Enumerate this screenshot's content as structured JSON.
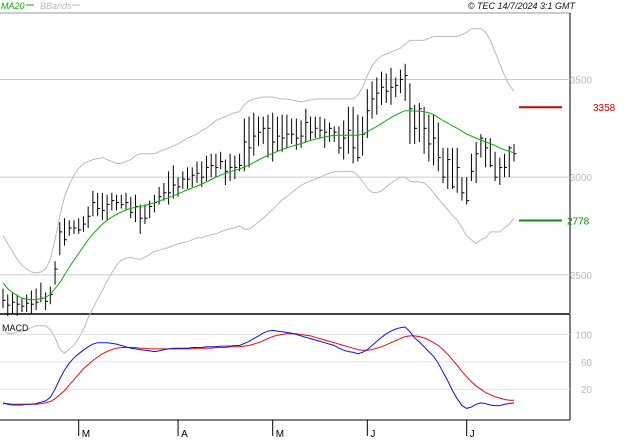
{
  "header": {
    "ma_label": "MA20",
    "bb_label": "BBands",
    "copyright": "© TEC 14/7/2024 3:1 GMT"
  },
  "colors": {
    "price": "#000000",
    "ma20": "#11aa11",
    "bbands": "#bbbbbb",
    "macd": "#1111dd",
    "signal": "#dd1111",
    "resistance": "#cc0000",
    "support": "#118811",
    "grid": "#cccccc"
  },
  "chart_data": [
    {
      "type": "ohlc",
      "title": "",
      "y_ticks": [
        "2500",
        "3000",
        "3500"
      ],
      "y_tick_values": [
        2500,
        3000,
        3500
      ],
      "ylim": [
        2305,
        3840
      ],
      "x_month_labels": [
        {
          "label": "M",
          "index": 16
        },
        {
          "label": "A",
          "index": 37
        },
        {
          "label": "M",
          "index": 57
        },
        {
          "label": "J",
          "index": 77
        },
        {
          "label": "J",
          "index": 98
        }
      ],
      "levels": {
        "resistance": {
          "label": "3358",
          "value": 3358
        },
        "support": {
          "label": "2778",
          "value": 2778
        }
      },
      "close": [
        2370,
        2345,
        2360,
        2350,
        2340,
        2355,
        2350,
        2360,
        2380,
        2365,
        2400,
        2530,
        2720,
        2680,
        2740,
        2740,
        2730,
        2760,
        2800,
        2870,
        2840,
        2830,
        2860,
        2880,
        2870,
        2860,
        2870,
        2820,
        2850,
        2790,
        2790,
        2850,
        2870,
        2900,
        2920,
        2920,
        2960,
        2950,
        2990,
        2990,
        3010,
        3020,
        3000,
        3050,
        3060,
        3050,
        3080,
        3030,
        3050,
        3050,
        3060,
        3180,
        3150,
        3210,
        3230,
        3250,
        3250,
        3180,
        3210,
        3200,
        3220,
        3220,
        3200,
        3210,
        3280,
        3230,
        3250,
        3240,
        3230,
        3250,
        3230,
        3150,
        3200,
        3240,
        3150,
        3100,
        3220,
        3340,
        3400,
        3430,
        3460,
        3440,
        3460,
        3470,
        3500,
        3520,
        3350,
        3250,
        3350,
        3250,
        3170,
        3200,
        3100,
        3000,
        3090,
        2950,
        3050,
        2920,
        2880,
        3030,
        3120,
        3200,
        3150,
        3060,
        3000,
        3050,
        3050,
        3150,
        3120
      ],
      "high": [
        2430,
        2400,
        2410,
        2400,
        2380,
        2400,
        2420,
        2430,
        2460,
        2410,
        2440,
        2570,
        2770,
        2790,
        2780,
        2780,
        2790,
        2800,
        2850,
        2930,
        2920,
        2920,
        2910,
        2920,
        2910,
        2910,
        2920,
        2900,
        2910,
        2860,
        2860,
        2880,
        2910,
        2950,
        2970,
        3030,
        3060,
        3000,
        3030,
        3050,
        3050,
        3080,
        3080,
        3110,
        3120,
        3120,
        3130,
        3090,
        3120,
        3110,
        3120,
        3300,
        3310,
        3330,
        3310,
        3310,
        3320,
        3330,
        3310,
        3320,
        3320,
        3300,
        3300,
        3290,
        3350,
        3310,
        3310,
        3310,
        3300,
        3280,
        3260,
        3260,
        3290,
        3360,
        3360,
        3320,
        3310,
        3450,
        3490,
        3510,
        3540,
        3530,
        3560,
        3510,
        3550,
        3580,
        3480,
        3370,
        3380,
        3360,
        3320,
        3320,
        3280,
        3150,
        3150,
        3150,
        3150,
        3000,
        3000,
        3120,
        3180,
        3220,
        3200,
        3200,
        3130,
        3100,
        3120,
        3160,
        3170
      ],
      "low": [
        2330,
        2290,
        2300,
        2290,
        2310,
        2310,
        2300,
        2320,
        2360,
        2320,
        2350,
        2450,
        2600,
        2650,
        2700,
        2710,
        2710,
        2720,
        2740,
        2800,
        2800,
        2780,
        2780,
        2830,
        2830,
        2840,
        2830,
        2790,
        2770,
        2710,
        2760,
        2790,
        2820,
        2860,
        2880,
        2860,
        2890,
        2900,
        2940,
        2940,
        2950,
        2970,
        2950,
        2980,
        3000,
        3000,
        3040,
        2960,
        2980,
        2990,
        3030,
        3030,
        3050,
        3110,
        3160,
        3170,
        3100,
        3080,
        3130,
        3130,
        3150,
        3170,
        3140,
        3150,
        3180,
        3190,
        3200,
        3200,
        3150,
        3180,
        3180,
        3120,
        3090,
        3120,
        3070,
        3080,
        3110,
        3200,
        3300,
        3320,
        3370,
        3380,
        3370,
        3410,
        3430,
        3390,
        3170,
        3170,
        3180,
        3120,
        3080,
        3060,
        3030,
        2970,
        2940,
        2940,
        2920,
        2880,
        2860,
        2980,
        2970,
        3100,
        3050,
        3050,
        2980,
        2960,
        3000,
        3000,
        3080
      ],
      "ma20": [
        2460,
        2430,
        2410,
        2395,
        2380,
        2375,
        2372,
        2374,
        2378,
        2385,
        2400,
        2430,
        2460,
        2500,
        2540,
        2575,
        2610,
        2645,
        2680,
        2710,
        2735,
        2760,
        2780,
        2795,
        2810,
        2822,
        2832,
        2840,
        2846,
        2850,
        2855,
        2862,
        2870,
        2878,
        2887,
        2895,
        2905,
        2915,
        2925,
        2935,
        2945,
        2955,
        2965,
        2975,
        2988,
        3000,
        3010,
        3020,
        3028,
        3035,
        3042,
        3052,
        3062,
        3075,
        3088,
        3100,
        3112,
        3122,
        3132,
        3142,
        3150,
        3158,
        3165,
        3172,
        3180,
        3188,
        3195,
        3200,
        3206,
        3210,
        3214,
        3214,
        3214,
        3215,
        3214,
        3214,
        3220,
        3232,
        3246,
        3260,
        3275,
        3290,
        3305,
        3318,
        3330,
        3340,
        3340,
        3338,
        3338,
        3335,
        3330,
        3320,
        3305,
        3290,
        3277,
        3262,
        3250,
        3235,
        3220,
        3210,
        3200,
        3190,
        3180,
        3172,
        3162,
        3150,
        3140,
        3132,
        3125
      ],
      "bb_upper": [
        2700,
        2660,
        2620,
        2580,
        2550,
        2530,
        2515,
        2510,
        2515,
        2530,
        2580,
        2680,
        2800,
        2900,
        2960,
        3010,
        3045,
        3070,
        3080,
        3090,
        3095,
        3100,
        3090,
        3080,
        3070,
        3070,
        3080,
        3090,
        3110,
        3120,
        3120,
        3120,
        3120,
        3130,
        3140,
        3150,
        3160,
        3170,
        3185,
        3200,
        3210,
        3220,
        3240,
        3250,
        3270,
        3290,
        3300,
        3310,
        3320,
        3330,
        3335,
        3370,
        3390,
        3400,
        3405,
        3410,
        3410,
        3410,
        3405,
        3400,
        3400,
        3395,
        3390,
        3385,
        3390,
        3395,
        3400,
        3400,
        3400,
        3400,
        3400,
        3400,
        3400,
        3400,
        3400,
        3420,
        3460,
        3520,
        3570,
        3600,
        3620,
        3630,
        3640,
        3650,
        3660,
        3680,
        3700,
        3700,
        3700,
        3700,
        3710,
        3720,
        3720,
        3720,
        3720,
        3720,
        3720,
        3730,
        3740,
        3760,
        3760,
        3760,
        3740,
        3700,
        3640,
        3580,
        3520,
        3470,
        3440
      ],
      "bb_lower": [
        2220,
        2200,
        2200,
        2210,
        2210,
        2220,
        2230,
        2240,
        2240,
        2240,
        2220,
        2180,
        2120,
        2100,
        2120,
        2140,
        2175,
        2220,
        2280,
        2330,
        2375,
        2420,
        2470,
        2510,
        2550,
        2575,
        2585,
        2590,
        2582,
        2580,
        2590,
        2605,
        2620,
        2626,
        2634,
        2640,
        2650,
        2660,
        2665,
        2670,
        2680,
        2690,
        2690,
        2700,
        2706,
        2710,
        2720,
        2730,
        2736,
        2740,
        2750,
        2734,
        2734,
        2750,
        2771,
        2790,
        2814,
        2834,
        2859,
        2884,
        2900,
        2921,
        2940,
        2959,
        2970,
        2981,
        2990,
        3000,
        3012,
        3020,
        3028,
        3028,
        3028,
        3030,
        3028,
        3008,
        2980,
        2944,
        2922,
        2920,
        2930,
        2950,
        2970,
        2986,
        3000,
        3000,
        2980,
        2976,
        2976,
        2970,
        2950,
        2920,
        2890,
        2860,
        2834,
        2804,
        2780,
        2740,
        2700,
        2680,
        2660,
        2680,
        2690,
        2720,
        2720,
        2720,
        2740,
        2760,
        2790
      ],
      "macd_ticks": [
        "20",
        "60",
        "100"
      ],
      "macd_tick_values": [
        20,
        60,
        100
      ],
      "macd_ylim": [
        -25,
        130
      ],
      "macd": [
        0,
        -2,
        -3,
        -3,
        -3,
        -2,
        -2,
        -1,
        1,
        3,
        8,
        20,
        35,
        48,
        58,
        66,
        72,
        77,
        82,
        86,
        88,
        88,
        88,
        87,
        86,
        84,
        82,
        80,
        79,
        78,
        77,
        76,
        75,
        76,
        78,
        79,
        80,
        80,
        80,
        80,
        81,
        81,
        81,
        82,
        82,
        82,
        83,
        83,
        83,
        84,
        84,
        87,
        90,
        94,
        98,
        102,
        105,
        106,
        105,
        104,
        103,
        102,
        100,
        98,
        96,
        94,
        92,
        90,
        88,
        86,
        84,
        80,
        77,
        75,
        74,
        72,
        74,
        78,
        84,
        90,
        96,
        101,
        105,
        108,
        110,
        111,
        104,
        95,
        89,
        82,
        75,
        68,
        58,
        45,
        32,
        18,
        6,
        -4,
        -8,
        -6,
        -2,
        0,
        -1,
        -3,
        -4,
        -4,
        -2,
        -1,
        0
      ],
      "signal": [
        -1,
        -1,
        -2,
        -2,
        -2,
        -2,
        -2,
        -2,
        -1,
        0,
        2,
        6,
        12,
        18,
        26,
        34,
        42,
        50,
        56,
        62,
        67,
        72,
        75,
        78,
        80,
        81,
        81,
        81,
        81,
        80,
        80,
        79,
        79,
        79,
        79,
        79,
        79,
        79,
        79,
        79,
        79,
        80,
        80,
        80,
        80,
        81,
        81,
        81,
        82,
        82,
        82,
        83,
        84,
        86,
        88,
        91,
        94,
        97,
        99,
        100,
        101,
        101,
        101,
        100,
        99,
        98,
        96,
        94,
        92,
        90,
        88,
        86,
        84,
        82,
        80,
        78,
        77,
        77,
        78,
        80,
        82,
        85,
        88,
        91,
        94,
        97,
        98,
        98,
        97,
        95,
        92,
        88,
        84,
        78,
        71,
        63,
        55,
        46,
        38,
        31,
        25,
        20,
        15,
        12,
        9,
        7,
        5,
        4,
        4
      ]
    }
  ]
}
